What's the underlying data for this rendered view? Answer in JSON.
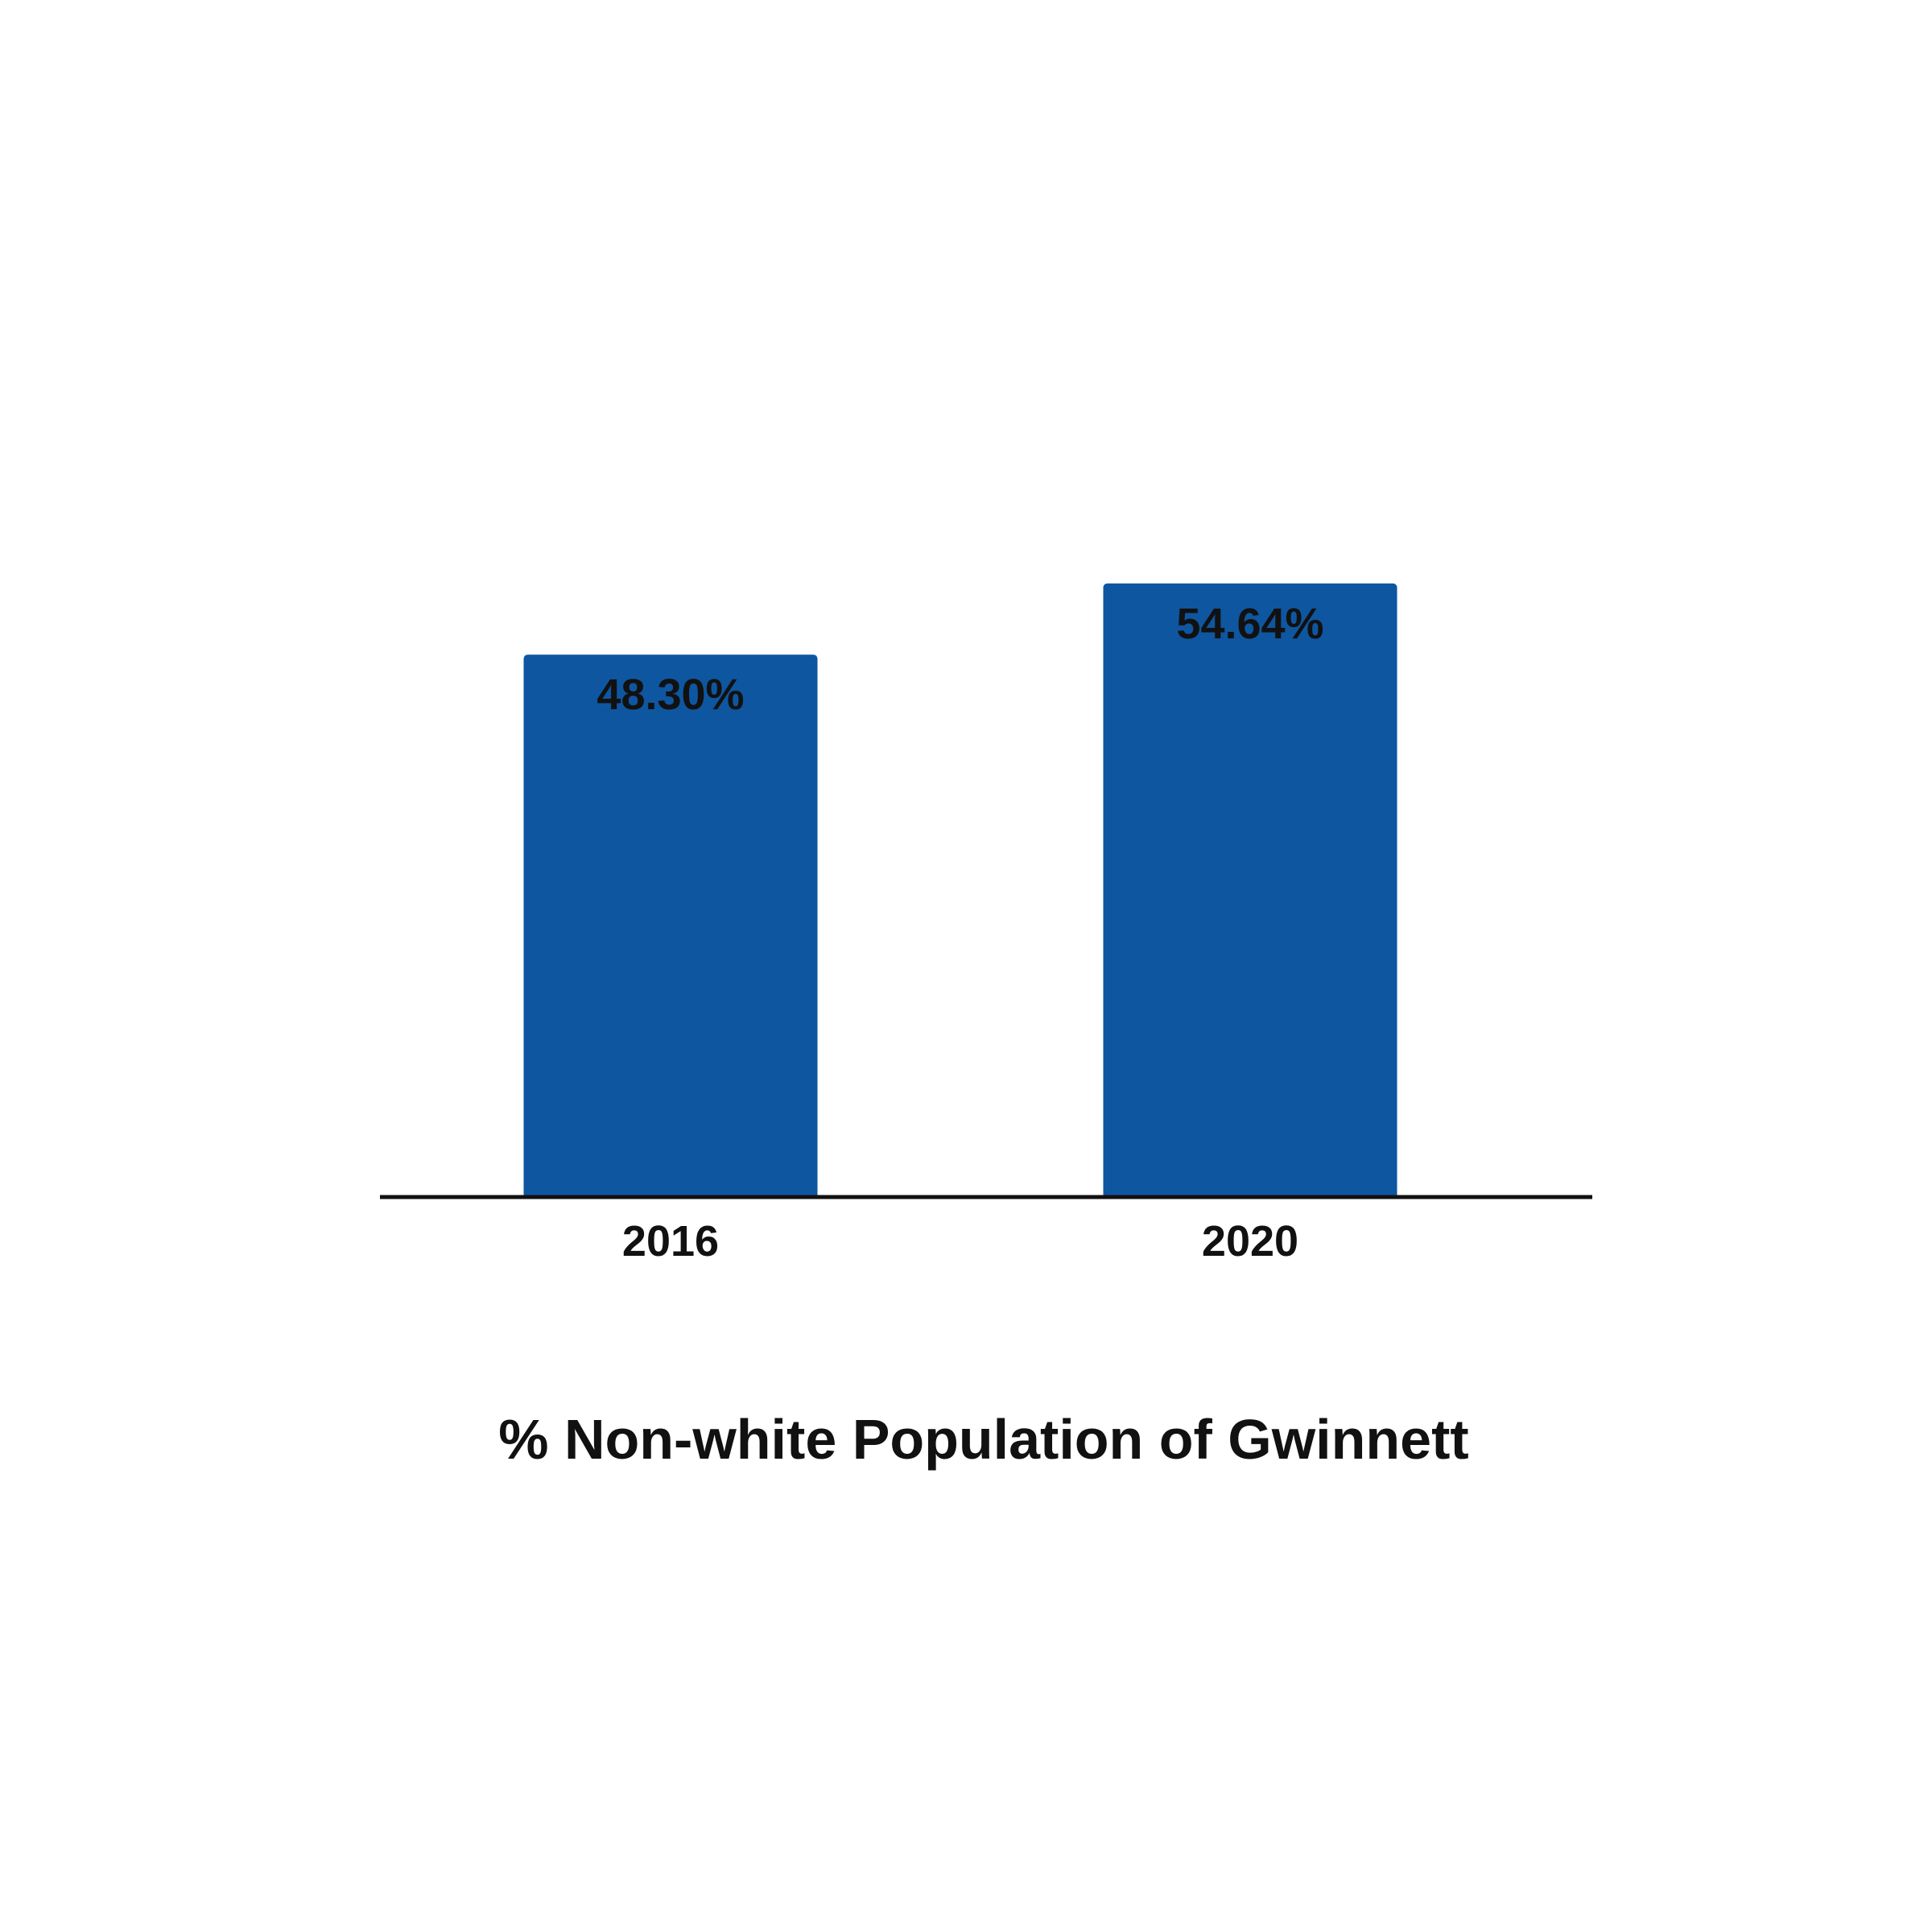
{
  "chart_data": {
    "type": "bar",
    "categories": [
      "2016",
      "2020"
    ],
    "values": [
      48.3,
      54.64
    ],
    "data_labels": [
      "48.30%",
      "54.64%"
    ],
    "title": "% Non-white Population of Gwinnett",
    "xlabel": "",
    "ylabel": "",
    "ylim": [
      0,
      100
    ],
    "grid": false,
    "legend": "none",
    "colors": {
      "bar": "#0E56A0",
      "axis": "#111111",
      "text": "#111111",
      "background": "#FFFFFF"
    }
  }
}
